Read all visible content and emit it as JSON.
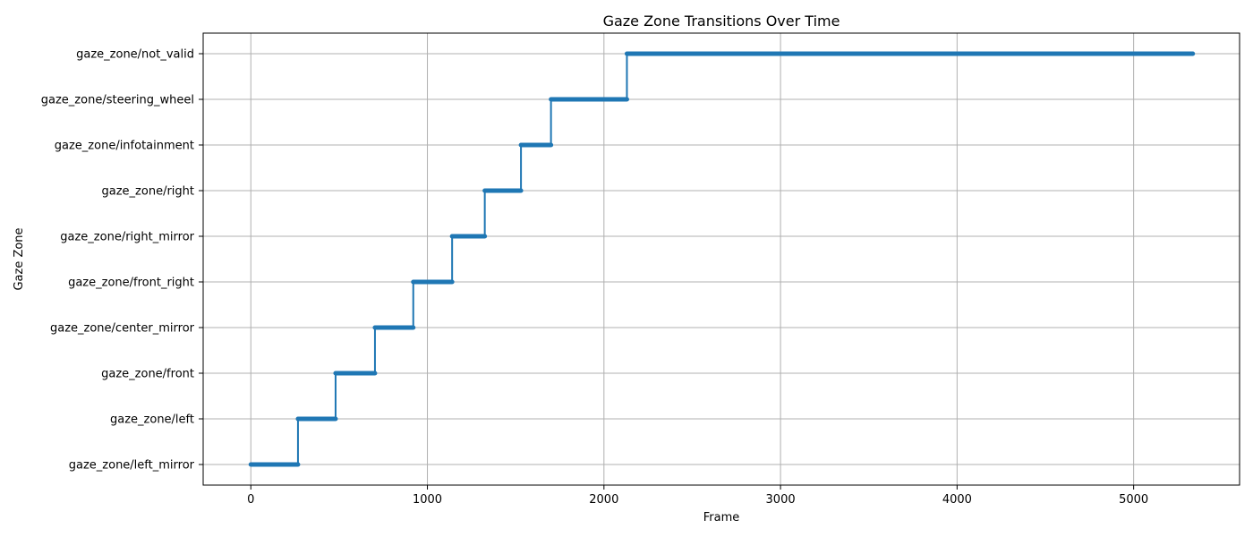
{
  "chart_data": {
    "type": "line",
    "title": "Gaze Zone Transitions Over Time",
    "xlabel": "Frame",
    "ylabel": "Gaze Zone",
    "xlim": [
      -270,
      5600
    ],
    "x_ticks": [
      0,
      1000,
      2000,
      3000,
      4000,
      5000
    ],
    "categories": [
      "gaze_zone/left_mirror",
      "gaze_zone/left",
      "gaze_zone/front",
      "gaze_zone/center_mirror",
      "gaze_zone/front_right",
      "gaze_zone/right_mirror",
      "gaze_zone/right",
      "gaze_zone/infotainment",
      "gaze_zone/steering_wheel",
      "gaze_zone/not_valid"
    ],
    "grid": true,
    "legend": "none",
    "line_color": "#1f77b4",
    "segments": [
      {
        "zone": "gaze_zone/left_mirror",
        "start": 0,
        "end": 267
      },
      {
        "zone": "gaze_zone/left",
        "start": 267,
        "end": 480
      },
      {
        "zone": "gaze_zone/front",
        "start": 480,
        "end": 703
      },
      {
        "zone": "gaze_zone/center_mirror",
        "start": 703,
        "end": 920
      },
      {
        "zone": "gaze_zone/front_right",
        "start": 920,
        "end": 1140
      },
      {
        "zone": "gaze_zone/right_mirror",
        "start": 1140,
        "end": 1325
      },
      {
        "zone": "gaze_zone/right",
        "start": 1325,
        "end": 1530
      },
      {
        "zone": "gaze_zone/infotainment",
        "start": 1530,
        "end": 1700
      },
      {
        "zone": "gaze_zone/steering_wheel",
        "start": 1700,
        "end": 2130
      },
      {
        "zone": "gaze_zone/not_valid",
        "start": 2130,
        "end": 5335
      }
    ]
  }
}
